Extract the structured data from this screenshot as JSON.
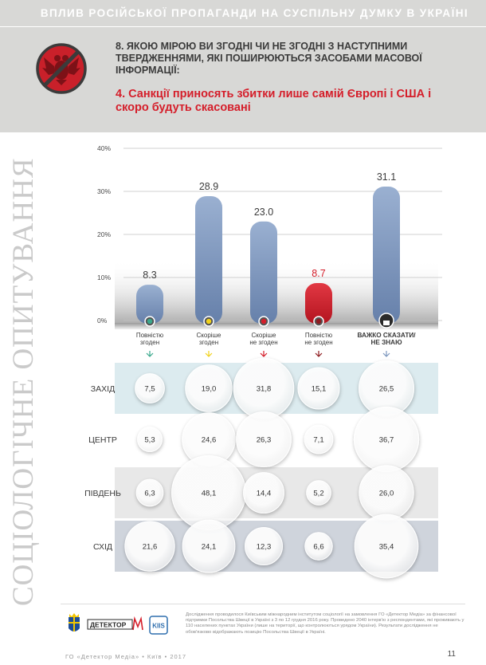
{
  "header": {
    "title": "ВПЛИВ РОСІЙСЬКОЇ ПРОПАГАНДИ НА СУСПІЛЬНУ ДУМКУ В УКРАЇНІ"
  },
  "question": {
    "text": "8. ЯКОЮ МІРОЮ ВИ ЗГОДНІ ЧИ НЕ ЗГОДНІ З НАСТУПНИМИ ТВЕРДЖЕННЯМИ, ЯКІ ПОШИРЮЮТЬСЯ ЗАСОБАМИ МАСОВОЇ ІНФОРМАЦІЇ:"
  },
  "statement": {
    "text": "4. Санкції приносять збитки лише самій Європі і США і скоро будуть скасовані"
  },
  "sidebar": {
    "text": "СОЦІОЛОГІЧНЕ ОПИТУВАННЯ"
  },
  "colors": {
    "accent_red": "#d51e2a",
    "bar_blue": "#7b96bd",
    "green": "#3aa88c",
    "yellow": "#f1d21a",
    "dark_red": "#8e1b1f",
    "gray_text": "#3a3a3a"
  },
  "icons": {
    "propaganda": "russian-eagle-prohibited-icon",
    "unknown": "question-person-icon"
  },
  "chart_data": [
    {
      "type": "bar",
      "categories": [
        "Повністю згоден",
        "Скоріше згоден",
        "Скоріше не згоден",
        "Повністю не згоден",
        "ВАЖКО СКАЗАТИ/ НЕ ЗНАЮ"
      ],
      "values": [
        8.3,
        28.9,
        23.0,
        8.7,
        31.1
      ],
      "value_labels": [
        "8.3",
        "28.9",
        "23.0",
        "8.7",
        "31.1"
      ],
      "bar_colors": [
        "#7b96bd",
        "#7b96bd",
        "#7b96bd",
        "#d51e2a",
        "#7b96bd"
      ],
      "ylim": [
        0,
        40
      ],
      "yticks": [
        "0%",
        "10%",
        "20%",
        "30%",
        "40%"
      ],
      "grid": true
    },
    {
      "type": "bubble-table",
      "rows": [
        "ЗАХІД",
        "ЦЕНТР",
        "ПІВДЕНЬ",
        "СХІД"
      ],
      "columns": [
        "Повністю згоден",
        "Скоріше згоден",
        "Скоріше не згоден",
        "Повністю не згоден",
        "ВАЖКО СКАЗАТИ/ НЕ ЗНАЮ"
      ],
      "values": [
        [
          7.5,
          19.0,
          31.8,
          15.1,
          26.5
        ],
        [
          5.3,
          24.6,
          26.3,
          7.1,
          36.7
        ],
        [
          6.3,
          48.1,
          14.4,
          5.2,
          26.0
        ],
        [
          21.6,
          24.1,
          12.3,
          6.6,
          35.4
        ]
      ],
      "value_labels": [
        [
          "7,5",
          "19,0",
          "31,8",
          "15,1",
          "26,5"
        ],
        [
          "5,3",
          "24,6",
          "26,3",
          "7,1",
          "36,7"
        ],
        [
          "6,3",
          "48,1",
          "14,4",
          "5,2",
          "26,0"
        ],
        [
          "21,6",
          "24,1",
          "12,3",
          "6,6",
          "35,4"
        ]
      ]
    }
  ],
  "footer": {
    "text": "Дослідження проводилося Київським міжнародним інститутом соціології на замовлення ГО «Детектор Медіа» за фінансової підтримки Посольства Швеції в Україні з 3 по 12 грудня 2016 року. Проведено 2040 інтерв'ю з респондентами, які проживають у 110 населених пунктах України (лише на території, що контролюються урядом України). Результати дослідження не обов'язково відображають позицію Посольства Швеції в Україні.",
    "left": "ГО «Детектор Медіа» • Київ • 2017",
    "page": "11",
    "logo_detector": "ДЕТЕКТОР",
    "logo_kiis": "KIIS"
  }
}
